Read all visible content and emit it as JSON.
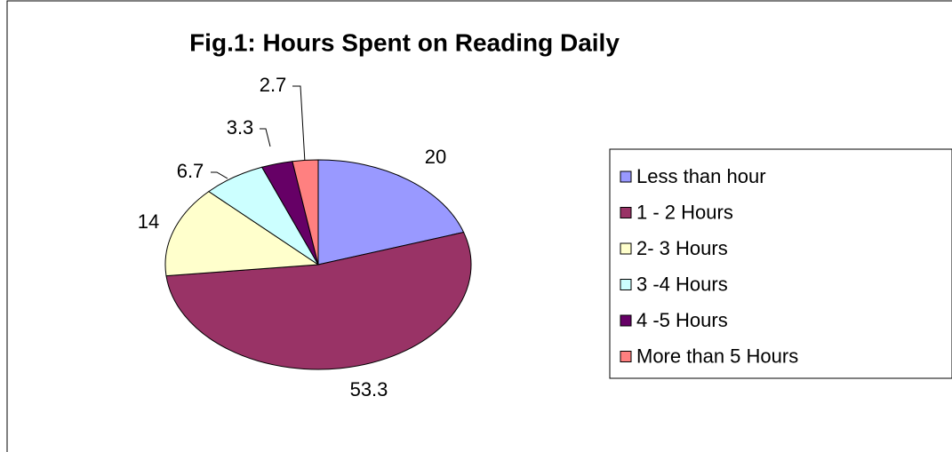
{
  "chart_data": {
    "type": "pie",
    "title": "Fig.1: Hours Spent on Reading Daily",
    "categories": [
      "Less than hour",
      "1 - 2 Hours",
      "2- 3 Hours",
      "3 -4 Hours",
      "4 -5 Hours",
      "More than 5 Hours"
    ],
    "values": [
      20,
      53.3,
      14,
      6.7,
      3.3,
      2.7
    ],
    "colors": [
      "#9999ff",
      "#993366",
      "#ffffcc",
      "#ccffff",
      "#660066",
      "#ff8080"
    ],
    "legend": "right"
  }
}
